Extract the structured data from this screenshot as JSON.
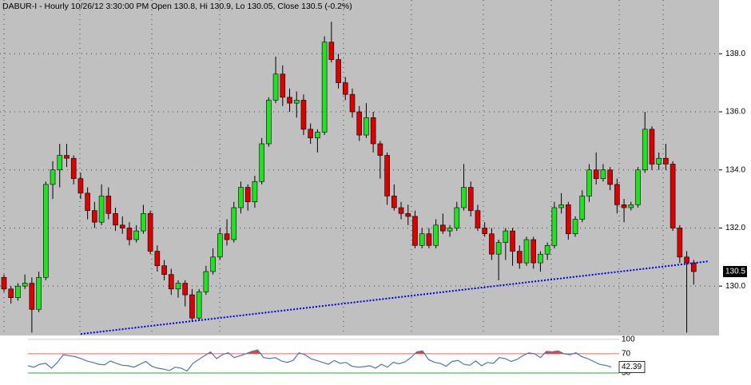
{
  "chart_data": [
    {
      "type": "candlestick",
      "title": "DABUR-I - Hourly 10/26/12 3:30:00 PM Open 130.8, Hi 130.9, Lo 130.05, Close 130.5 (-0.2%)",
      "up_color": "#22e022",
      "down_color": "#dd0000",
      "ylim": [
        128.3,
        139.85
      ],
      "yticks": [
        {
          "value": 130,
          "label": "130.0"
        },
        {
          "value": 132,
          "label": "132.0"
        },
        {
          "value": 134,
          "label": "134.0"
        },
        {
          "value": 136,
          "label": "136.0"
        },
        {
          "value": 138,
          "label": "138.0"
        }
      ],
      "grid": true,
      "open": [
        130.3,
        129.9,
        129.6,
        130.0,
        130.1,
        129.2,
        130.3,
        133.5,
        134.0,
        134.5,
        134.4,
        133.7,
        133.2,
        132.6,
        132.2,
        133.1,
        132.5,
        132.1,
        132.0,
        131.6,
        131.9,
        132.5,
        131.2,
        130.7,
        130.4,
        129.9,
        130.1,
        129.7,
        128.9,
        129.8,
        130.5,
        131.0,
        131.8,
        131.6,
        132.7,
        133.4,
        132.9,
        133.6,
        134.9,
        136.4,
        137.3,
        136.5,
        136.3,
        136.4,
        135.4,
        135.1,
        135.3,
        138.4,
        137.8,
        137.0,
        136.6,
        136.0,
        135.2,
        135.8,
        134.9,
        134.5,
        133.1,
        132.7,
        132.5,
        132.4,
        131.4,
        131.8,
        131.4,
        132.1,
        131.9,
        132.0,
        132.7,
        133.4,
        132.6,
        132.0,
        131.8,
        131.1,
        131.5,
        131.9,
        131.2,
        130.8,
        131.6,
        130.8,
        131.1,
        131.4,
        132.7,
        132.8,
        131.8,
        132.3,
        133.1,
        134.0,
        133.7,
        134.0,
        133.5,
        132.8,
        132.7,
        132.8,
        134.0,
        135.4,
        134.2,
        134.4,
        134.2,
        132.0,
        131.0,
        130.8
      ],
      "high": [
        130.4,
        130.0,
        130.1,
        130.4,
        130.3,
        130.5,
        133.6,
        134.3,
        134.9,
        134.9,
        134.5,
        133.9,
        133.4,
        132.9,
        133.5,
        133.4,
        132.7,
        132.4,
        132.2,
        132.1,
        132.8,
        132.6,
        131.4,
        130.9,
        130.6,
        130.2,
        130.2,
        129.9,
        129.9,
        130.7,
        131.3,
        132.0,
        132.3,
        132.9,
        133.6,
        133.5,
        133.8,
        135.1,
        136.5,
        137.9,
        137.6,
        136.8,
        136.7,
        136.6,
        135.6,
        135.4,
        138.6,
        139.1,
        138.0,
        137.2,
        136.8,
        136.2,
        136.3,
        136.0,
        135.0,
        134.6,
        133.5,
        132.9,
        132.8,
        132.6,
        132.0,
        132.0,
        132.3,
        132.5,
        132.1,
        132.9,
        134.2,
        133.6,
        132.8,
        132.2,
        132.0,
        131.6,
        132.0,
        132.0,
        131.4,
        131.7,
        131.7,
        131.2,
        131.5,
        132.9,
        133.2,
        132.9,
        132.4,
        133.3,
        134.2,
        134.6,
        134.2,
        134.1,
        133.7,
        133.0,
        132.9,
        134.1,
        136.0,
        135.5,
        134.6,
        134.9,
        134.3,
        132.1,
        131.2,
        130.9
      ],
      "low": [
        129.8,
        129.4,
        129.5,
        129.9,
        128.4,
        129.1,
        130.2,
        133.0,
        133.4,
        134.1,
        133.5,
        133.0,
        132.3,
        132.0,
        132.1,
        132.3,
        131.9,
        131.8,
        131.4,
        131.5,
        131.8,
        131.1,
        130.5,
        130.2,
        129.7,
        129.6,
        129.3,
        128.8,
        128.8,
        129.7,
        130.4,
        130.9,
        131.4,
        131.5,
        132.5,
        132.6,
        132.7,
        133.5,
        134.8,
        136.3,
        136.2,
        136.0,
        135.8,
        135.2,
        134.9,
        134.6,
        135.2,
        137.7,
        136.8,
        136.4,
        135.8,
        135.0,
        135.1,
        134.6,
        133.7,
        132.8,
        132.6,
        132.3,
        132.1,
        131.3,
        131.3,
        131.3,
        131.3,
        131.8,
        131.7,
        131.9,
        132.6,
        132.4,
        131.9,
        131.7,
        130.9,
        130.2,
        130.9,
        130.7,
        130.6,
        130.7,
        130.6,
        130.5,
        130.9,
        131.3,
        132.5,
        131.6,
        131.7,
        132.2,
        132.9,
        133.5,
        133.6,
        133.3,
        132.5,
        132.2,
        132.6,
        132.7,
        133.9,
        134.0,
        134.0,
        134.0,
        131.9,
        130.8,
        128.4,
        130.05
      ],
      "close": [
        129.9,
        129.6,
        130.0,
        130.1,
        129.2,
        130.3,
        133.5,
        134.0,
        134.5,
        134.4,
        133.7,
        133.2,
        132.6,
        132.2,
        133.1,
        132.5,
        132.1,
        132.0,
        131.6,
        131.9,
        132.5,
        131.2,
        130.7,
        130.4,
        129.9,
        130.1,
        129.7,
        128.9,
        129.8,
        130.5,
        131.0,
        131.8,
        131.6,
        132.7,
        133.4,
        132.9,
        133.6,
        134.9,
        136.4,
        137.3,
        136.5,
        136.3,
        136.4,
        135.4,
        135.1,
        135.3,
        138.4,
        137.8,
        137.0,
        136.6,
        136.0,
        135.2,
        135.8,
        134.9,
        134.5,
        133.1,
        132.7,
        132.5,
        132.4,
        131.4,
        131.8,
        131.4,
        132.1,
        131.9,
        132.0,
        132.7,
        133.4,
        132.6,
        132.0,
        131.8,
        131.1,
        131.5,
        131.9,
        131.2,
        130.8,
        131.6,
        130.8,
        131.1,
        131.4,
        132.7,
        132.8,
        131.8,
        132.3,
        133.1,
        134.0,
        133.7,
        134.0,
        133.5,
        132.8,
        132.7,
        132.8,
        134.0,
        135.4,
        134.2,
        134.4,
        134.2,
        132.0,
        131.0,
        130.8,
        130.5
      ],
      "trendline": {
        "x": [
          11,
          101
        ],
        "y": [
          128.35,
          130.85
        ],
        "color": "#0000dd"
      }
    },
    {
      "type": "line",
      "series": [
        {
          "color": "#4a78b0",
          "values": [
            45,
            42,
            48,
            50,
            40,
            52,
            68,
            66,
            64,
            60,
            55,
            52,
            48,
            47,
            55,
            50,
            46,
            45,
            42,
            48,
            54,
            44,
            40,
            38,
            35,
            42,
            40,
            34,
            50,
            58,
            66,
            74,
            60,
            68,
            72,
            62,
            66,
            70,
            75,
            78,
            62,
            60,
            62,
            55,
            52,
            56,
            72,
            68,
            60,
            56,
            52,
            48,
            56,
            50,
            52,
            44,
            42,
            43,
            45,
            40,
            48,
            42,
            52,
            49,
            53,
            62,
            74,
            76,
            58,
            52,
            50,
            44,
            54,
            56,
            48,
            46,
            55,
            45,
            52,
            50,
            62,
            60,
            54,
            58,
            66,
            72,
            70,
            62,
            75,
            74,
            76,
            70,
            68,
            72,
            64,
            60,
            54,
            48,
            46,
            42.39
          ]
        }
      ],
      "ylim": [
        5,
        108
      ],
      "yticks": [
        30,
        70,
        100
      ],
      "band_colors": {
        "upper": "#ff6060",
        "lower": "#30a030",
        "fill": "#e84040"
      }
    }
  ]
}
